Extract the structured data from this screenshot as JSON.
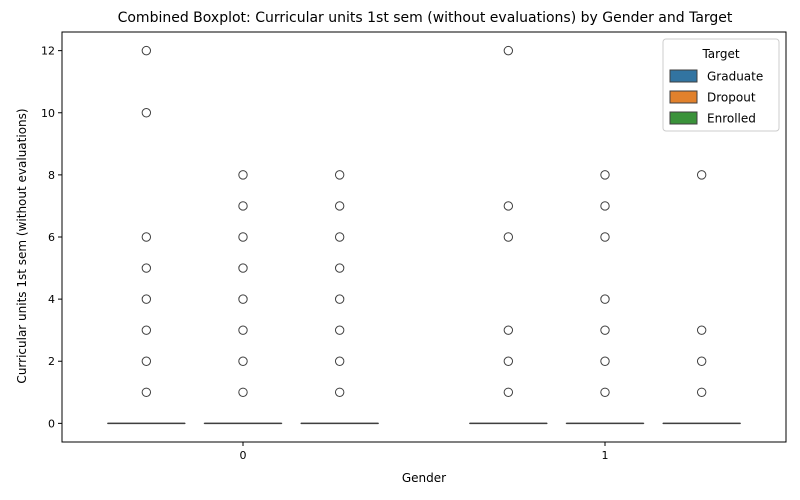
{
  "chart_data": {
    "type": "boxplot",
    "title": "Combined Boxplot: Curricular units 1st sem (without evaluations) by Gender and Target",
    "xlabel": "Gender",
    "ylabel": "Curricular units 1st sem (without evaluations)",
    "categories": [
      "0",
      "1"
    ],
    "ylim": [
      -0.6,
      12.6
    ],
    "yticks": [
      0,
      2,
      4,
      6,
      8,
      10,
      12
    ],
    "grid": false,
    "legend": {
      "title": "Target",
      "placement": "top-right",
      "entries": [
        {
          "name": "Graduate",
          "color": "#3274a1"
        },
        {
          "name": "Dropout",
          "color": "#e1812c"
        },
        {
          "name": "Enrolled",
          "color": "#3a923a"
        }
      ]
    },
    "series": [
      {
        "name": "Graduate",
        "color": "#3274a1",
        "boxes": [
          {
            "category": "0",
            "q1": 0,
            "median": 0,
            "q3": 0,
            "whisker_low": 0,
            "whisker_high": 0,
            "outliers": [
              1,
              2,
              3,
              4,
              5,
              6,
              10,
              12
            ]
          },
          {
            "category": "1",
            "q1": 0,
            "median": 0,
            "q3": 0,
            "whisker_low": 0,
            "whisker_high": 0,
            "outliers": [
              1,
              2,
              3,
              6,
              7,
              12
            ]
          }
        ]
      },
      {
        "name": "Dropout",
        "color": "#e1812c",
        "boxes": [
          {
            "category": "0",
            "q1": 0,
            "median": 0,
            "q3": 0,
            "whisker_low": 0,
            "whisker_high": 0,
            "outliers": [
              1,
              2,
              3,
              4,
              5,
              6,
              7,
              8
            ]
          },
          {
            "category": "1",
            "q1": 0,
            "median": 0,
            "q3": 0,
            "whisker_low": 0,
            "whisker_high": 0,
            "outliers": [
              1,
              2,
              3,
              4,
              6,
              7,
              8
            ]
          }
        ]
      },
      {
        "name": "Enrolled",
        "color": "#3a923a",
        "boxes": [
          {
            "category": "0",
            "q1": 0,
            "median": 0,
            "q3": 0,
            "whisker_low": 0,
            "whisker_high": 0,
            "outliers": [
              1,
              2,
              3,
              4,
              5,
              6,
              7,
              8
            ]
          },
          {
            "category": "1",
            "q1": 0,
            "median": 0,
            "q3": 0,
            "whisker_low": 0,
            "whisker_high": 0,
            "outliers": [
              1,
              2,
              3,
              8
            ]
          }
        ]
      }
    ]
  }
}
